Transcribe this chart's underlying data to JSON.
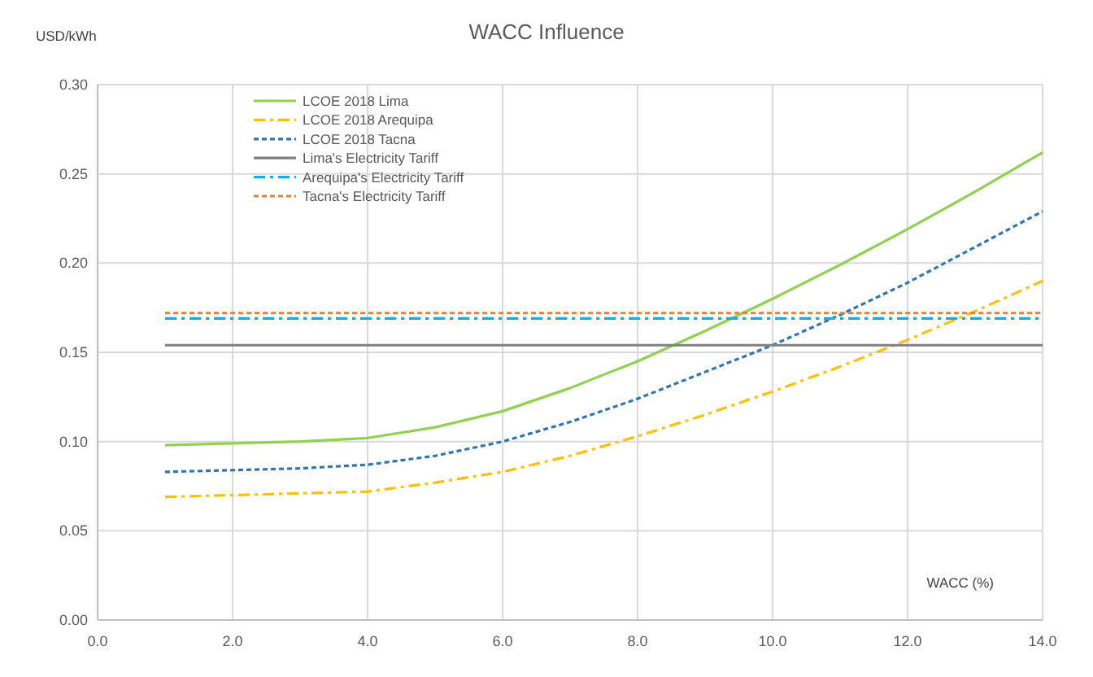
{
  "chart_data": {
    "type": "line",
    "title": "WACC Influence",
    "xlabel": "WACC (%)",
    "ylabel": "USD/kWh",
    "x": [
      1,
      2,
      3,
      4,
      5,
      6,
      7,
      8,
      9,
      10,
      11,
      12,
      13,
      14
    ],
    "series": [
      {
        "name": "LCOE 2018 Lima",
        "color": "#92d050",
        "line_style": "solid",
        "values": [
          0.098,
          0.099,
          0.1,
          0.102,
          0.108,
          0.117,
          0.13,
          0.145,
          0.162,
          0.18,
          0.199,
          0.219,
          0.24,
          0.262
        ]
      },
      {
        "name": "LCOE 2018 Arequipa",
        "color": "#ffc000",
        "line_style": "dashed",
        "values": [
          0.069,
          0.07,
          0.071,
          0.072,
          0.077,
          0.083,
          0.092,
          0.103,
          0.115,
          0.128,
          0.142,
          0.157,
          0.173,
          0.19
        ]
      },
      {
        "name": "LCOE 2018 Tacna",
        "color": "#2e75b6",
        "line_style": "dotted",
        "values": [
          0.083,
          0.084,
          0.085,
          0.087,
          0.092,
          0.1,
          0.111,
          0.124,
          0.139,
          0.154,
          0.171,
          0.189,
          0.209,
          0.229
        ]
      },
      {
        "name": "Lima's Electricity Tariff",
        "color": "#808080",
        "line_style": "solid",
        "values": [
          0.154,
          0.154,
          0.154,
          0.154,
          0.154,
          0.154,
          0.154,
          0.154,
          0.154,
          0.154,
          0.154,
          0.154,
          0.154,
          0.154
        ]
      },
      {
        "name": "Arequipa's Electricity Tariff",
        "color": "#00b0f0",
        "line_style": "dashed",
        "values": [
          0.169,
          0.169,
          0.169,
          0.169,
          0.169,
          0.169,
          0.169,
          0.169,
          0.169,
          0.169,
          0.169,
          0.169,
          0.169,
          0.169
        ]
      },
      {
        "name": "Tacna's Electricity Tariff",
        "color": "#ed7d31",
        "line_style": "dotted",
        "values": [
          0.172,
          0.172,
          0.172,
          0.172,
          0.172,
          0.172,
          0.172,
          0.172,
          0.172,
          0.172,
          0.172,
          0.172,
          0.172,
          0.172
        ]
      }
    ],
    "xlim": [
      0,
      14
    ],
    "ylim": [
      0,
      0.3
    ],
    "xticks": [
      {
        "value": 0,
        "label": "0.0"
      },
      {
        "value": 2,
        "label": "2.0"
      },
      {
        "value": 4,
        "label": "4.0"
      },
      {
        "value": 6,
        "label": "6.0"
      },
      {
        "value": 8,
        "label": "8.0"
      },
      {
        "value": 10,
        "label": "10.0"
      },
      {
        "value": 12,
        "label": "12.0"
      },
      {
        "value": 14,
        "label": "14.0"
      }
    ],
    "yticks": [
      {
        "value": 0,
        "label": "0.00"
      },
      {
        "value": 0.05,
        "label": "0.05"
      },
      {
        "value": 0.1,
        "label": "0.10"
      },
      {
        "value": 0.15,
        "label": "0.15"
      },
      {
        "value": 0.2,
        "label": "0.20"
      },
      {
        "value": 0.25,
        "label": "0.25"
      },
      {
        "value": 0.3,
        "label": "0.30"
      }
    ],
    "grid": true,
    "legend": "top left",
    "marker": "none"
  }
}
